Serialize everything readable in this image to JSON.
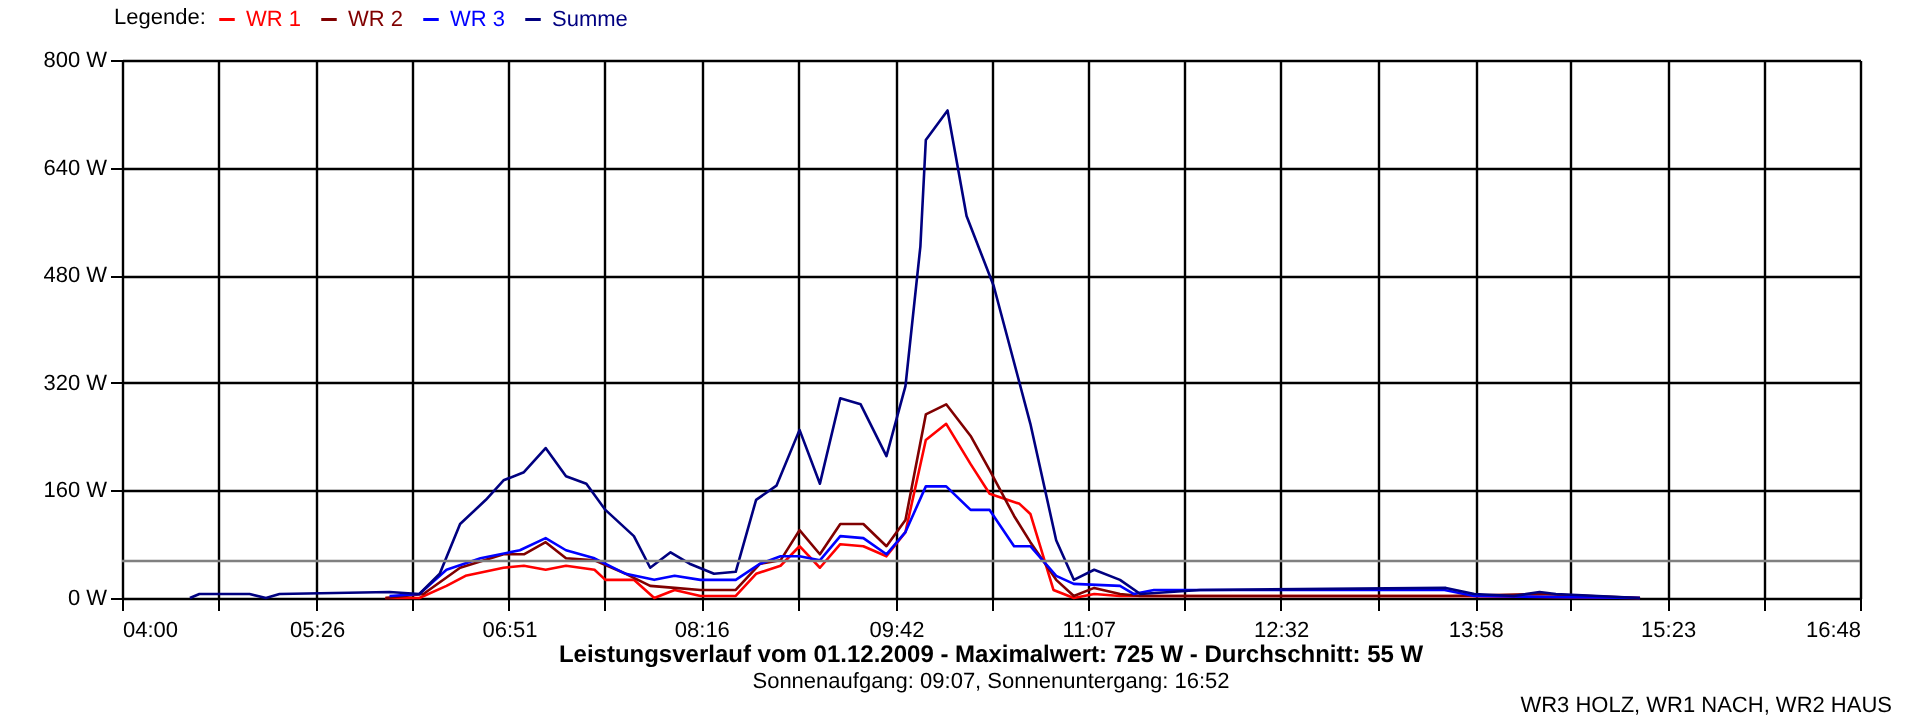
{
  "chart_data": {
    "type": "line",
    "title": "Leistungsverlauf vom 01.12.2009 - Maximalwert: 725 W - Durchschnitt: 55 W",
    "subtitle": "Sonnenaufgang: 09:07, Sonnenuntergang: 16:52",
    "legend_title": "Legende:",
    "annotations": [
      "WR3 HOLZ, WR1 NACH, WR2 HAUS"
    ],
    "xlim": [
      4,
      16.8
    ],
    "xticks": [
      {
        "value": 4,
        "label": "04:00"
      },
      {
        "value": 4.711,
        "label": null
      },
      {
        "value": 5.4333,
        "label": "05:26"
      },
      {
        "value": 6.133,
        "label": null
      },
      {
        "value": 6.85,
        "label": "06:51"
      },
      {
        "value": 7.556,
        "label": null
      },
      {
        "value": 8.2667,
        "label": "08:16"
      },
      {
        "value": 8.978,
        "label": null
      },
      {
        "value": 9.7,
        "label": "09:42"
      },
      {
        "value": 10.4,
        "label": null
      },
      {
        "value": 11.1167,
        "label": "11:07"
      },
      {
        "value": 11.822,
        "label": null
      },
      {
        "value": 12.533,
        "label": "12:32"
      },
      {
        "value": 13.244,
        "label": null
      },
      {
        "value": 13.9667,
        "label": "13:58"
      },
      {
        "value": 14.667,
        "label": null
      },
      {
        "value": 15.3833,
        "label": "15:23"
      },
      {
        "value": 16.089,
        "label": null
      },
      {
        "value": 16.8,
        "label": "16:48"
      }
    ],
    "ylim": [
      0,
      800
    ],
    "yticks": [
      {
        "value": 0,
        "label": "0 W"
      },
      {
        "value": 160,
        "label": "160 W"
      },
      {
        "value": 320,
        "label": "320 W"
      },
      {
        "value": 480,
        "label": "480 W"
      },
      {
        "value": 640,
        "label": "640 W"
      },
      {
        "value": 800,
        "label": "800 W"
      }
    ],
    "grid": true,
    "legend": "top left",
    "ref_lines": [
      {
        "axis": "y",
        "value": 55,
        "color": "#808080"
      }
    ],
    "series": [
      {
        "name": "WR 1",
        "color": "#ff0000",
        "x": [
          5.94,
          6.19,
          6.39,
          6.53,
          6.81,
          6.96,
          7.12,
          7.27,
          7.48,
          7.56,
          7.77,
          7.92,
          8.07,
          8.26,
          8.52,
          8.67,
          8.85,
          8.99,
          9.14,
          9.29,
          9.46,
          9.63,
          9.77,
          9.92,
          10.07,
          10.25,
          10.39,
          10.61,
          10.69,
          10.86,
          11.01,
          11.16,
          11.35,
          13.78,
          15.18
        ],
        "values": [
          0,
          0,
          18,
          33,
          45,
          48,
          42,
          48,
          42,
          27,
          27,
          0,
          12,
          3,
          3,
          36,
          48,
          77,
          45,
          80,
          77,
          62,
          98,
          235,
          259,
          199,
          155,
          140,
          125,
          12,
          0,
          6,
          3,
          3,
          0
        ]
      },
      {
        "name": "WR 2",
        "color": "#800000",
        "x": [
          5.94,
          6.22,
          6.49,
          6.81,
          6.96,
          7.12,
          7.27,
          7.48,
          7.71,
          7.89,
          8.07,
          8.26,
          8.52,
          8.7,
          8.85,
          8.99,
          9.14,
          9.29,
          9.46,
          9.63,
          9.77,
          9.92,
          10.07,
          10.25,
          10.39,
          10.57,
          10.69,
          10.88,
          11.01,
          11.16,
          11.35,
          11.5,
          13.78,
          14.44,
          15.18
        ],
        "values": [
          0,
          6,
          45,
          65,
          65,
          83,
          59,
          56,
          36,
          18,
          15,
          12,
          12,
          51,
          56,
          101,
          65,
          110,
          110,
          77,
          116,
          273,
          288,
          241,
          190,
          122,
          83,
          27,
          3,
          15,
          6,
          3,
          3,
          6,
          0
        ]
      },
      {
        "name": "WR 3",
        "color": "#0000ff",
        "x": [
          5.97,
          6.19,
          6.39,
          6.64,
          6.93,
          7.12,
          7.27,
          7.48,
          7.71,
          7.92,
          8.07,
          8.26,
          8.52,
          8.7,
          8.85,
          8.99,
          9.14,
          9.29,
          9.46,
          9.63,
          9.77,
          9.92,
          10.07,
          10.25,
          10.39,
          10.57,
          10.69,
          10.88,
          11.01,
          11.35,
          11.45,
          11.6,
          13.74,
          13.96,
          15.18
        ],
        "values": [
          3,
          6,
          42,
          59,
          71,
          89,
          71,
          59,
          36,
          27,
          33,
          27,
          27,
          51,
          62,
          62,
          56,
          92,
          89,
          65,
          98,
          166,
          166,
          131,
          131,
          77,
          77,
          33,
          21,
          18,
          6,
          12,
          12,
          3,
          0
        ]
      },
      {
        "name": "Summe",
        "color": "#000080",
        "x": [
          4.5,
          4.57,
          4.94,
          5.06,
          5.16,
          5.97,
          6.19,
          6.34,
          6.49,
          6.68,
          6.81,
          6.96,
          7.12,
          7.27,
          7.42,
          7.56,
          7.77,
          7.89,
          8.04,
          8.18,
          8.36,
          8.52,
          8.67,
          8.82,
          8.99,
          9.14,
          9.29,
          9.44,
          9.63,
          9.77,
          9.88,
          9.92,
          10.08,
          10.22,
          10.42,
          10.69,
          10.88,
          11.01,
          11.16,
          11.35,
          11.5,
          11.94,
          13.75,
          13.96,
          14.25,
          14.44,
          14.56,
          15.18
        ],
        "values": [
          0,
          6,
          6,
          0,
          6,
          9,
          6,
          36,
          110,
          146,
          175,
          187,
          223,
          181,
          170,
          131,
          92,
          45,
          68,
          51,
          36,
          39,
          146,
          167,
          250,
          170,
          297,
          288,
          211,
          315,
          523,
          681,
          725,
          568,
          464,
          259,
          86,
          27,
          42,
          27,
          6,
          12,
          15,
          6,
          3,
          9,
          6,
          0
        ]
      }
    ]
  }
}
